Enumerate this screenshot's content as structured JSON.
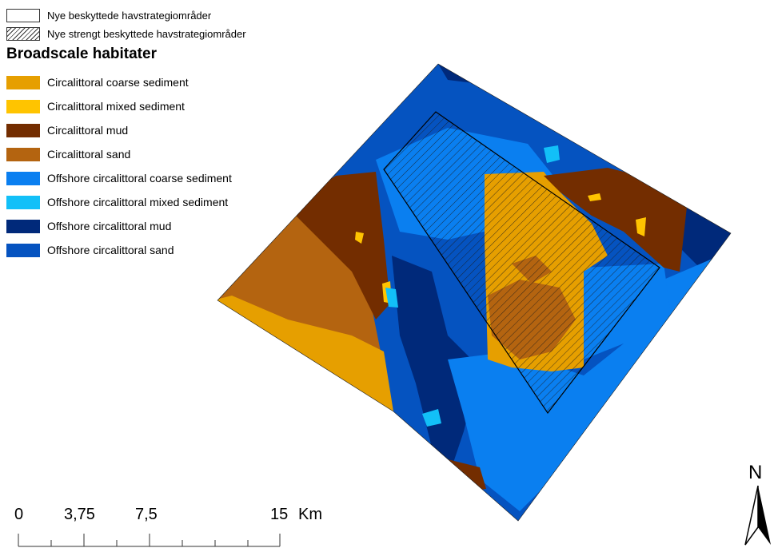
{
  "legend": {
    "boundaries": [
      {
        "label": "Nye beskyttede havstrategiområder",
        "style": "outline"
      },
      {
        "label": "Nye strengt beskyttede havstrategiområder",
        "style": "hatch"
      }
    ],
    "habitats_title": "Broadscale habitater",
    "habitats": [
      {
        "label": "Circalittoral coarse sediment",
        "color": "#e69f00"
      },
      {
        "label": "Circalittoral mixed sediment",
        "color": "#ffc400"
      },
      {
        "label": "Circalittoral mud",
        "color": "#732d00"
      },
      {
        "label": "Circalittoral sand",
        "color": "#b46410"
      },
      {
        "label": "Offshore circalittoral coarse sediment",
        "color": "#0a7ff0"
      },
      {
        "label": "Offshore circalittoral mixed sediment",
        "color": "#12c0f8"
      },
      {
        "label": "Offshore circalittoral mud",
        "color": "#00297a"
      },
      {
        "label": "Offshore circalittoral sand",
        "color": "#0553c0"
      }
    ]
  },
  "scale_bar": {
    "ticks": [
      "0",
      "3,75",
      "7,5",
      "15"
    ],
    "unit": "Km"
  },
  "north_arrow": {
    "label": "N"
  }
}
